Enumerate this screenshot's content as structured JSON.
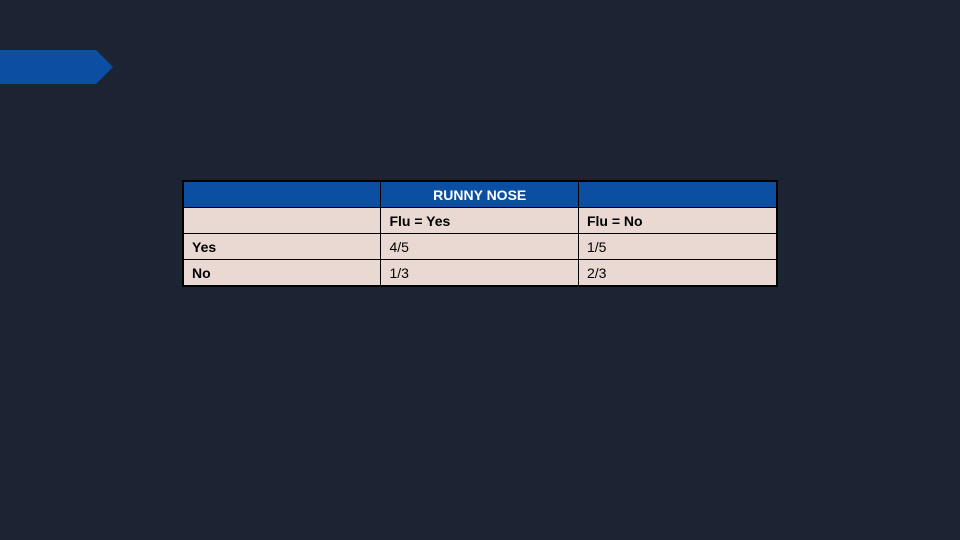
{
  "colors": {
    "background": "#1c2433",
    "accent": "#0b4ea2",
    "row_bg": "#ead9d3",
    "text": "#000000",
    "header_text": "#ffffff"
  },
  "banner": {
    "shape": "arrow-right",
    "fill": "#0b4ea2"
  },
  "table": {
    "type": "table",
    "title": "RUNNY NOSE",
    "column_headers": [
      "",
      "Flu = Yes",
      "Flu = No"
    ],
    "rows": [
      {
        "label": "Yes",
        "cells": [
          "4/5",
          "1/5"
        ]
      },
      {
        "label": "No",
        "cells": [
          "1/3",
          "2/3"
        ]
      }
    ],
    "styling": {
      "header_bg": "#0b4ea2",
      "header_color": "#ffffff",
      "body_bg": "#ead9d3",
      "border_color": "#000000",
      "font_size_pt": 11,
      "font_weight_header": 700,
      "font_weight_labels": 700,
      "font_weight_cells": 400,
      "col_widths_pct": [
        33.3,
        33.3,
        33.4
      ]
    }
  }
}
